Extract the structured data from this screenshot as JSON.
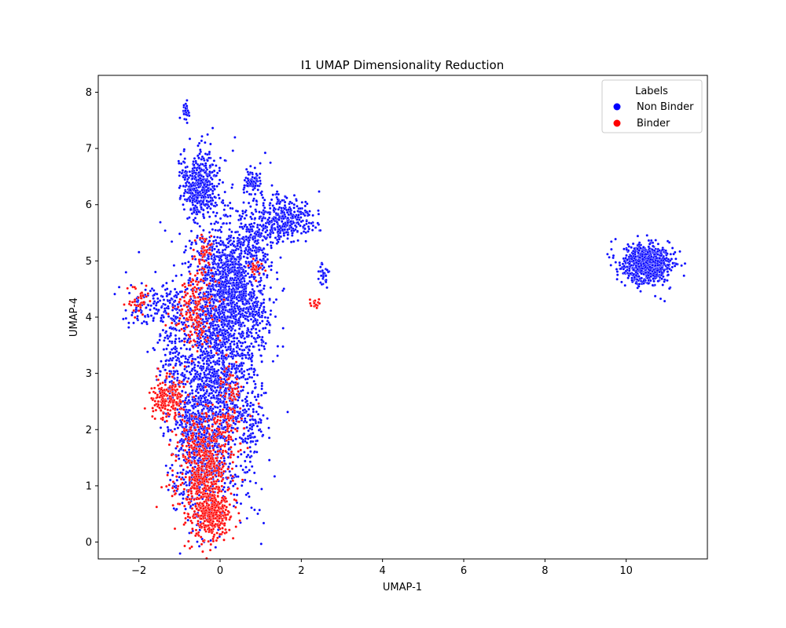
{
  "chart_data": {
    "type": "scatter",
    "title": "I1 UMAP Dimensionality Reduction",
    "xlabel": "UMAP-1",
    "ylabel": "UMAP-4",
    "xlim": [
      -3,
      12
    ],
    "ylim": [
      -0.3,
      8.3
    ],
    "xticks": [
      -2,
      0,
      2,
      4,
      6,
      8,
      10
    ],
    "yticks": [
      0,
      1,
      2,
      3,
      4,
      5,
      6,
      7,
      8
    ],
    "grid": false,
    "legend": {
      "title": "Labels",
      "placement": "top-right",
      "entries": [
        "Non Binder",
        "Binder"
      ]
    },
    "series": [
      {
        "name": "Non Binder",
        "color": "#0000ff",
        "clusters": [
          {
            "cx": 0.0,
            "cy": 3.4,
            "sx": 0.5,
            "sy": 1.2,
            "n": 1800
          },
          {
            "cx": -0.5,
            "cy": 1.8,
            "sx": 0.35,
            "sy": 0.7,
            "n": 700
          },
          {
            "cx": 0.2,
            "cy": 4.6,
            "sx": 0.3,
            "sy": 0.45,
            "n": 600
          },
          {
            "cx": -0.5,
            "cy": 6.35,
            "sx": 0.22,
            "sy": 0.3,
            "n": 450
          },
          {
            "cx": 1.6,
            "cy": 5.75,
            "sx": 0.35,
            "sy": 0.2,
            "n": 350
          },
          {
            "cx": 0.85,
            "cy": 5.3,
            "sx": 0.25,
            "sy": 0.3,
            "n": 200
          },
          {
            "cx": 0.8,
            "cy": 6.4,
            "sx": 0.12,
            "sy": 0.12,
            "n": 80
          },
          {
            "cx": -0.85,
            "cy": 7.7,
            "sx": 0.06,
            "sy": 0.1,
            "n": 25
          },
          {
            "cx": -1.6,
            "cy": 4.2,
            "sx": 0.4,
            "sy": 0.2,
            "n": 150
          },
          {
            "cx": -1.2,
            "cy": 3.4,
            "sx": 0.2,
            "sy": 0.4,
            "n": 120
          },
          {
            "cx": 0.85,
            "cy": 4.1,
            "sx": 0.25,
            "sy": 0.35,
            "n": 150
          },
          {
            "cx": 0.75,
            "cy": 2.0,
            "sx": 0.1,
            "sy": 0.25,
            "n": 50
          },
          {
            "cx": 2.55,
            "cy": 4.75,
            "sx": 0.07,
            "sy": 0.12,
            "n": 30
          },
          {
            "cx": 10.5,
            "cy": 4.95,
            "sx": 0.32,
            "sy": 0.18,
            "n": 750
          }
        ]
      },
      {
        "name": "Binder",
        "color": "#ff0000",
        "clusters": [
          {
            "cx": -0.4,
            "cy": 1.2,
            "sx": 0.35,
            "sy": 0.6,
            "n": 650
          },
          {
            "cx": -0.2,
            "cy": 0.5,
            "sx": 0.2,
            "sy": 0.2,
            "n": 250
          },
          {
            "cx": -1.3,
            "cy": 2.55,
            "sx": 0.2,
            "sy": 0.18,
            "n": 200
          },
          {
            "cx": -0.6,
            "cy": 4.1,
            "sx": 0.25,
            "sy": 0.35,
            "n": 180
          },
          {
            "cx": -0.4,
            "cy": 5.1,
            "sx": 0.12,
            "sy": 0.2,
            "n": 50
          },
          {
            "cx": 0.25,
            "cy": 2.4,
            "sx": 0.15,
            "sy": 0.4,
            "n": 100
          },
          {
            "cx": 2.35,
            "cy": 4.27,
            "sx": 0.05,
            "sy": 0.05,
            "n": 15
          },
          {
            "cx": 0.9,
            "cy": 4.85,
            "sx": 0.08,
            "sy": 0.1,
            "n": 25
          },
          {
            "cx": -2.0,
            "cy": 4.3,
            "sx": 0.12,
            "sy": 0.12,
            "n": 40
          }
        ]
      }
    ]
  }
}
